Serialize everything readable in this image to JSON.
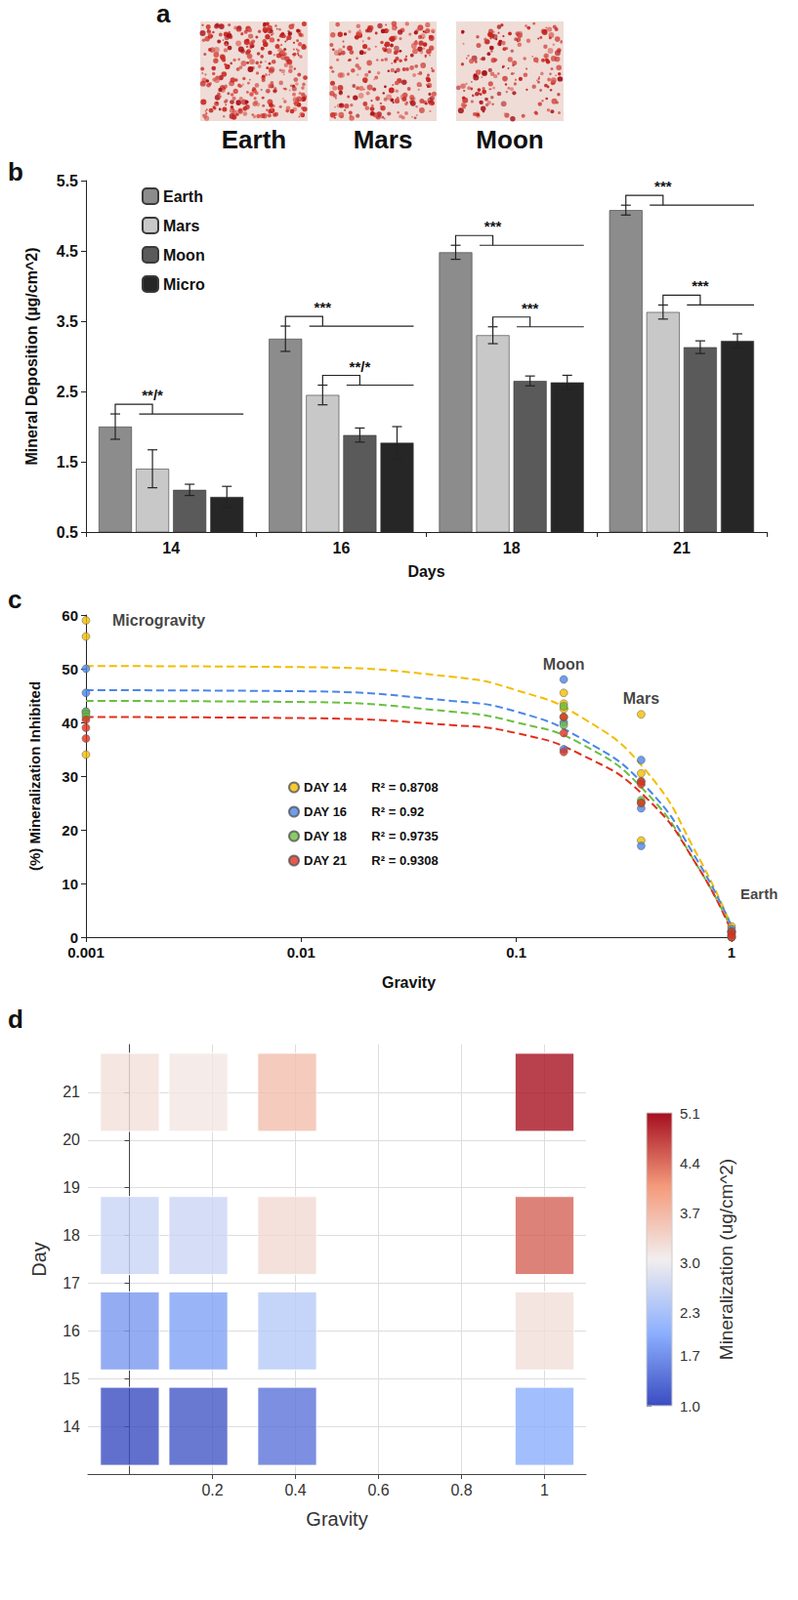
{
  "image_panel": {
    "letter": "a",
    "labels": [
      "Earth",
      "Mars",
      "Moon"
    ]
  },
  "chart_data": [
    {
      "letter": "b",
      "type": "bar",
      "categories": [
        "14",
        "16",
        "18",
        "21"
      ],
      "xlabel": "Days",
      "ylabel": "Mineral Deposition (µg/cm^2)",
      "ylim": [
        0.5,
        5.5
      ],
      "yticks": [
        0.5,
        1.5,
        2.5,
        3.5,
        4.5,
        5.5
      ],
      "grid": false,
      "legend": "top-left",
      "series": [
        {
          "name": "Earth",
          "color": "#8c8c8c",
          "values": [
            2.0,
            3.25,
            4.48,
            5.08
          ],
          "errors": [
            0.18,
            0.18,
            0.1,
            0.07
          ]
        },
        {
          "name": "Mars",
          "color": "#c8c8c8",
          "values": [
            1.4,
            2.45,
            3.3,
            3.63
          ],
          "errors": [
            0.27,
            0.14,
            0.12,
            0.1
          ]
        },
        {
          "name": "Moon",
          "color": "#5a5a5a",
          "values": [
            1.1,
            1.88,
            2.65,
            3.13
          ],
          "errors": [
            0.08,
            0.1,
            0.07,
            0.09
          ]
        },
        {
          "name": "Micro",
          "color": "#262626",
          "values": [
            1.0,
            1.77,
            2.63,
            3.22
          ],
          "errors": [
            0.15,
            0.23,
            0.1,
            0.1
          ]
        }
      ],
      "annotations": [
        {
          "category": "14",
          "from": "Earth",
          "to": [
            "Mars",
            "Moon",
            "Micro"
          ],
          "label": "**/*"
        },
        {
          "category": "16",
          "from": "Earth",
          "to": [
            "Mars",
            "Moon",
            "Micro"
          ],
          "label": "***"
        },
        {
          "category": "16",
          "from": "Mars",
          "to": [
            "Moon",
            "Micro"
          ],
          "label": "**/*"
        },
        {
          "category": "18",
          "from": "Earth",
          "to": [
            "Mars",
            "Moon",
            "Micro"
          ],
          "label": "***"
        },
        {
          "category": "18",
          "from": "Mars",
          "to": [
            "Moon",
            "Micro"
          ],
          "label": "***"
        },
        {
          "category": "21",
          "from": "Earth",
          "to": [
            "Mars",
            "Moon",
            "Micro"
          ],
          "label": "***"
        },
        {
          "category": "21",
          "from": "Mars",
          "to": [
            "Moon",
            "Micro"
          ],
          "label": "***"
        }
      ]
    },
    {
      "letter": "c",
      "type": "scatter",
      "xlabel": "Gravity",
      "ylabel": "(%) Mineralization Inhibited",
      "log": "x",
      "xlim": [
        0.001,
        1
      ],
      "xticks": [
        0.001,
        0.01,
        0.1,
        1
      ],
      "ylim": [
        0,
        60
      ],
      "yticks": [
        0,
        10,
        20,
        30,
        40,
        50,
        60
      ],
      "grid": false,
      "legend": "center",
      "marker": "circle",
      "series": [
        {
          "name": "DAY 14",
          "fit_label": "R² = 0.8708",
          "color": "#f2bd00",
          "line_style": "dashed",
          "x": [
            0.001,
            0.001,
            0.001,
            0.166,
            0.166,
            0.166,
            0.38,
            0.38,
            0.38,
            1,
            1,
            1
          ],
          "values": [
            59,
            56,
            34,
            45.5,
            43.5,
            42.5,
            41.5,
            30.5,
            18,
            2,
            1,
            0
          ],
          "trend": {
            "x": [
              0.001,
              0.01,
              0.05,
              0.1,
              0.2,
              0.4,
              0.7,
              1
            ],
            "values": [
              50.5,
              50.3,
              48.5,
              46,
              41,
              31,
              15,
              2
            ]
          }
        },
        {
          "name": "DAY 16",
          "fit_label": "R² = 0.92",
          "color": "#4a86e8",
          "line_style": "dashed",
          "x": [
            0.001,
            0.001,
            0.001,
            0.166,
            0.166,
            0.166,
            0.38,
            0.38,
            0.38,
            1,
            1,
            1
          ],
          "values": [
            50,
            45.5,
            42,
            48,
            40,
            35,
            33,
            24,
            17,
            1.5,
            1,
            0
          ],
          "trend": {
            "x": [
              0.001,
              0.01,
              0.05,
              0.1,
              0.2,
              0.4,
              0.7,
              1
            ],
            "values": [
              46,
              45.8,
              44,
              42,
              37,
              28,
              14,
              2
            ]
          }
        },
        {
          "name": "DAY 18",
          "fit_label": "R² = 0.9735",
          "color": "#6abf40",
          "line_style": "dashed",
          "x": [
            0.001,
            0.001,
            0.001,
            0.166,
            0.166,
            0.166,
            0.38,
            0.38,
            0.38,
            1,
            1,
            1
          ],
          "values": [
            42,
            41.5,
            41,
            43,
            41,
            39.5,
            29,
            25.5,
            25,
            1,
            0.5,
            0
          ],
          "trend": {
            "x": [
              0.001,
              0.01,
              0.05,
              0.1,
              0.2,
              0.4,
              0.7,
              1
            ],
            "values": [
              44,
              43.8,
              42,
              40,
              36,
              27,
              13,
              1.5
            ]
          }
        },
        {
          "name": "DAY 21",
          "fit_label": "R² = 0.9308",
          "color": "#e0301e",
          "line_style": "dashed",
          "x": [
            0.001,
            0.001,
            0.001,
            0.166,
            0.166,
            0.166,
            0.38,
            0.38,
            0.38,
            1,
            1,
            1
          ],
          "values": [
            40.5,
            39,
            37,
            41,
            38,
            34.5,
            29,
            28.5,
            25,
            1,
            0.5,
            0
          ],
          "trend": {
            "x": [
              0.001,
              0.01,
              0.05,
              0.1,
              0.2,
              0.4,
              0.7,
              1
            ],
            "values": [
              41,
              40.8,
              39.5,
              38,
              34,
              26,
              13,
              1
            ]
          }
        }
      ],
      "annotations": [
        {
          "text": "Microgravity",
          "x": 0.001
        },
        {
          "text": "Moon",
          "x": 0.166
        },
        {
          "text": "Mars",
          "x": 0.38
        },
        {
          "text": "Earth",
          "x": 1
        }
      ]
    },
    {
      "letter": "d",
      "type": "heatmap",
      "xlabel": "Gravity",
      "ylabel": "Day",
      "x": [
        0.001,
        0.166,
        0.38,
        1
      ],
      "y": [
        14,
        16,
        18,
        21
      ],
      "values": [
        [
          1.0,
          1.1,
          1.4,
          2.0
        ],
        [
          1.77,
          1.88,
          2.45,
          3.25
        ],
        [
          2.63,
          2.65,
          3.3,
          4.48
        ],
        [
          3.22,
          3.13,
          3.63,
          5.08
        ]
      ],
      "xlim": [
        -0.1,
        1.1
      ],
      "xticks": [
        0.2,
        0.4,
        0.6,
        0.8,
        1
      ],
      "ylim": [
        13,
        22
      ],
      "yticks": [
        14,
        15,
        16,
        17,
        18,
        19,
        20,
        21
      ],
      "grid": true,
      "colorbar": {
        "label": "Mineralization (ug/cm^2)",
        "range": [
          1.0,
          5.1
        ],
        "ticks": [
          {
            "value": 1,
            "label": "1.0"
          },
          1.7,
          2.3,
          {
            "value": 3,
            "label": "3.0"
          },
          3.7,
          4.4,
          5.1
        ]
      }
    }
  ]
}
